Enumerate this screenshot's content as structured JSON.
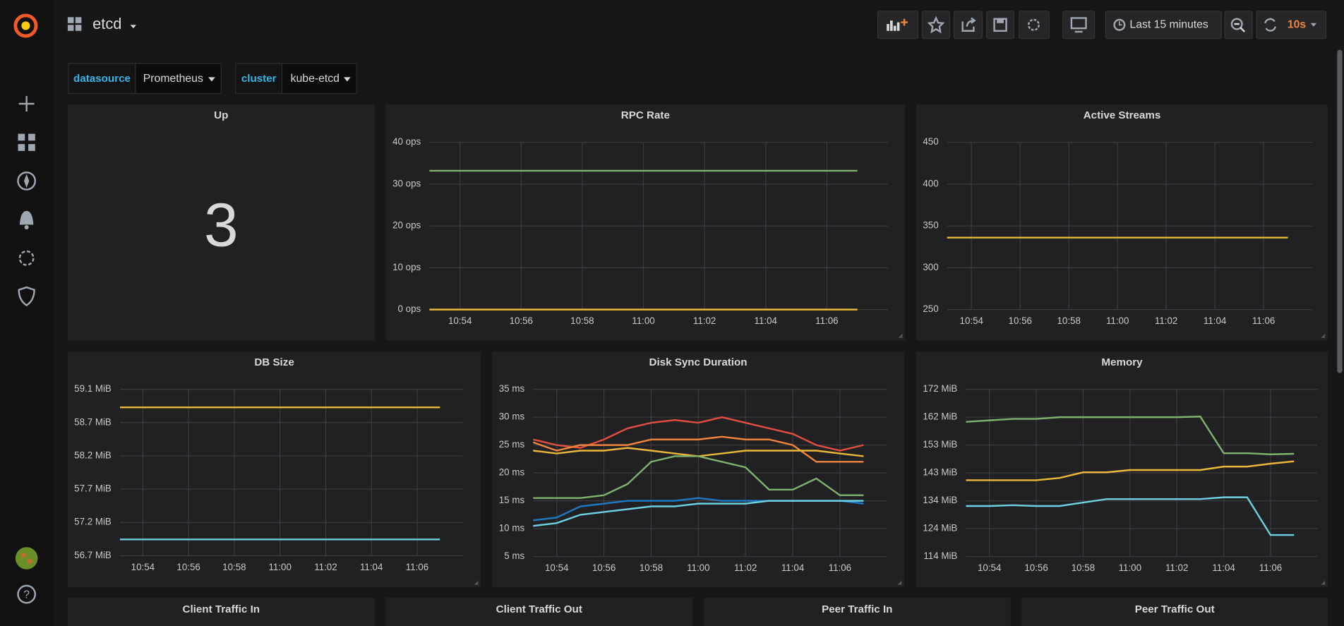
{
  "header": {
    "title": "etcd",
    "time_range": "Last 15 minutes",
    "refresh": "10s"
  },
  "variables": [
    {
      "label": "datasource",
      "value": "Prometheus"
    },
    {
      "label": "cluster",
      "value": "kube-etcd"
    }
  ],
  "stat_panel": {
    "title": "Up",
    "value": 3
  },
  "collapsed_panels": [
    "Client Traffic In",
    "Client Traffic Out",
    "Peer Traffic In",
    "Peer Traffic Out"
  ],
  "chart_data": [
    {
      "type": "line",
      "title": "RPC Rate",
      "x": [
        "10:53",
        "11:07"
      ],
      "xlim": [
        "10:53",
        "11:08"
      ],
      "xticks": [
        "10:54",
        "10:56",
        "10:58",
        "11:00",
        "11:02",
        "11:04",
        "11:06"
      ],
      "ylim": [
        0,
        40
      ],
      "yticks": [
        {
          "value": 0,
          "label": "0 ops"
        },
        {
          "value": 10,
          "label": "10 ops"
        },
        {
          "value": 20,
          "label": "20 ops"
        },
        {
          "value": 30,
          "label": "30 ops"
        },
        {
          "value": 40,
          "label": "40 ops"
        }
      ],
      "grid": true,
      "series": [
        {
          "color": "#7eb26d",
          "values": [
            33.2,
            33.2
          ]
        },
        {
          "color": "#eab839",
          "values": [
            0,
            0
          ]
        }
      ]
    },
    {
      "type": "line",
      "title": "Active Streams",
      "x": [
        "10:53",
        "11:07"
      ],
      "xlim": [
        "10:53",
        "11:08"
      ],
      "xticks": [
        "10:54",
        "10:56",
        "10:58",
        "11:00",
        "11:02",
        "11:04",
        "11:06"
      ],
      "ylim": [
        250,
        450
      ],
      "yticks": [
        250,
        300,
        350,
        400,
        450
      ],
      "grid": true,
      "series": [
        {
          "color": "#eab839",
          "values": [
            336,
            336
          ]
        }
      ]
    },
    {
      "type": "line",
      "title": "DB Size",
      "x": [
        "10:53",
        "11:07"
      ],
      "xlim": [
        "10:53",
        "11:08"
      ],
      "xticks": [
        "10:54",
        "10:56",
        "10:58",
        "11:00",
        "11:02",
        "11:04",
        "11:06"
      ],
      "ylim": [
        56.74,
        59.14
      ],
      "yticks": [
        {
          "value": 56.74,
          "label": "56.7 MiB"
        },
        {
          "value": 57.22,
          "label": "57.2 MiB"
        },
        {
          "value": 57.7,
          "label": "57.7 MiB"
        },
        {
          "value": 58.18,
          "label": "58.2 MiB"
        },
        {
          "value": 58.66,
          "label": "58.7 MiB"
        },
        {
          "value": 59.14,
          "label": "59.1 MiB"
        }
      ],
      "grid": true,
      "series": [
        {
          "color": "#eab839",
          "values": [
            58.88,
            58.88
          ]
        },
        {
          "color": "#6ed0e0",
          "values": [
            56.975,
            56.975
          ]
        }
      ]
    },
    {
      "type": "line",
      "title": "Disk Sync Duration",
      "x": [
        "10:53",
        "10:54",
        "10:55",
        "10:56",
        "10:57",
        "10:58",
        "10:59",
        "11:00",
        "11:01",
        "11:02",
        "11:03",
        "11:04",
        "11:05",
        "11:06",
        "11:07"
      ],
      "xlim": [
        "10:53",
        "11:08"
      ],
      "xticks": [
        "10:54",
        "10:56",
        "10:58",
        "11:00",
        "11:02",
        "11:04",
        "11:06"
      ],
      "ylim": [
        5,
        35
      ],
      "yticks": [
        {
          "value": 5,
          "label": "5 ms"
        },
        {
          "value": 10,
          "label": "10 ms"
        },
        {
          "value": 15,
          "label": "15 ms"
        },
        {
          "value": 20,
          "label": "20 ms"
        },
        {
          "value": 25,
          "label": "25 ms"
        },
        {
          "value": 30,
          "label": "30 ms"
        },
        {
          "value": 35,
          "label": "35 ms"
        }
      ],
      "grid": true,
      "series": [
        {
          "color": "#e24d42",
          "values": [
            26,
            25,
            24.5,
            26,
            28,
            29,
            29.5,
            29,
            30,
            29,
            28,
            27,
            25,
            24,
            25
          ]
        },
        {
          "color": "#ef843c",
          "values": [
            25.5,
            24,
            25,
            25,
            25,
            26,
            26,
            26,
            26.5,
            26,
            26,
            25,
            22,
            22,
            22
          ]
        },
        {
          "color": "#eab839",
          "values": [
            24,
            23.5,
            24,
            24,
            24.5,
            24,
            23.5,
            23,
            23.5,
            24,
            24,
            24,
            24,
            23.5,
            23
          ]
        },
        {
          "color": "#7eb26d",
          "values": [
            15.5,
            15.5,
            15.5,
            16,
            18,
            22,
            23,
            23,
            22,
            21,
            17,
            17,
            19,
            16,
            16
          ]
        },
        {
          "color": "#1f78c1",
          "values": [
            11.5,
            12,
            14,
            14.5,
            15,
            15,
            15,
            15.5,
            15,
            15,
            15,
            15,
            15,
            15,
            14.5
          ]
        },
        {
          "color": "#6ed0e0",
          "values": [
            10.5,
            11,
            12.5,
            13,
            13.5,
            14,
            14,
            14.5,
            14.5,
            14.5,
            15,
            15,
            15,
            15,
            15
          ]
        }
      ]
    },
    {
      "type": "line",
      "title": "Memory",
      "x": [
        "10:53",
        "10:54",
        "10:55",
        "10:56",
        "10:57",
        "10:58",
        "10:59",
        "11:00",
        "11:01",
        "11:02",
        "11:03",
        "11:04",
        "11:05",
        "11:06",
        "11:07"
      ],
      "xlim": [
        "10:53",
        "11:08"
      ],
      "xticks": [
        "10:54",
        "10:56",
        "10:58",
        "11:00",
        "11:02",
        "11:04",
        "11:06"
      ],
      "ylim": [
        114.4,
        172
      ],
      "yticks": [
        {
          "value": 114.4,
          "label": "114 MiB"
        },
        {
          "value": 124,
          "label": "124 MiB"
        },
        {
          "value": 133.6,
          "label": "134 MiB"
        },
        {
          "value": 143.2,
          "label": "143 MiB"
        },
        {
          "value": 152.8,
          "label": "153 MiB"
        },
        {
          "value": 162.4,
          "label": "162 MiB"
        },
        {
          "value": 172,
          "label": "172 MiB"
        }
      ],
      "grid": true,
      "series": [
        {
          "color": "#7eb26d",
          "values": [
            160.8,
            161.3,
            161.8,
            161.8,
            162.4,
            162.4,
            162.4,
            162.4,
            162.4,
            162.4,
            162.6,
            150,
            150,
            149.6,
            149.8
          ]
        },
        {
          "color": "#eab839",
          "values": [
            140.7,
            140.7,
            140.7,
            140.7,
            141.5,
            143.4,
            143.4,
            144.2,
            144.2,
            144.2,
            144.2,
            145.4,
            145.4,
            146.4,
            147.2
          ]
        },
        {
          "color": "#6ed0e0",
          "values": [
            131.8,
            131.8,
            132.1,
            131.8,
            131.8,
            133,
            134.2,
            134.2,
            134.2,
            134.2,
            134.2,
            134.8,
            134.8,
            121.8,
            121.8
          ]
        }
      ]
    }
  ]
}
